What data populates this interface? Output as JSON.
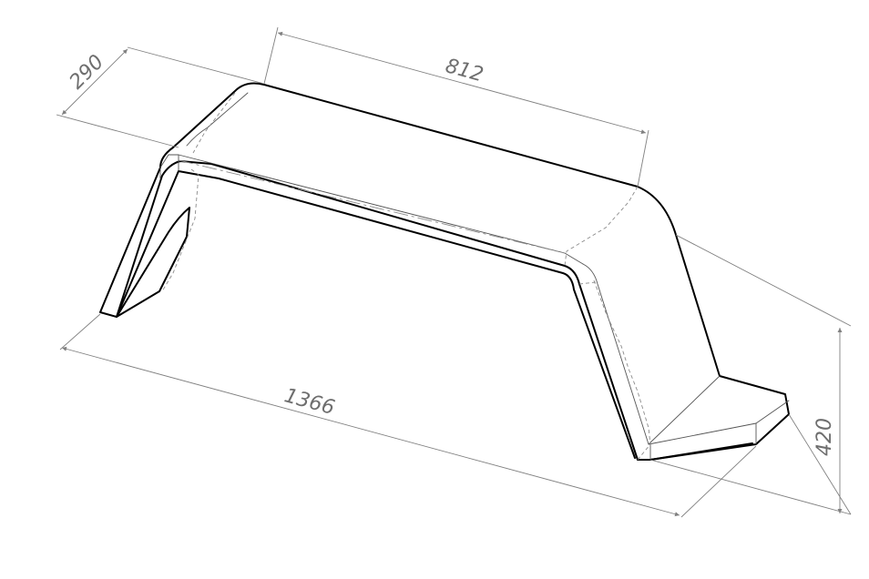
{
  "dimensions": {
    "length_overall": "1366",
    "top_length": "812",
    "width": "290",
    "height": "420"
  },
  "colors": {
    "outline": "#000000",
    "dimension": "#808080",
    "text": "#6e6e6e"
  }
}
